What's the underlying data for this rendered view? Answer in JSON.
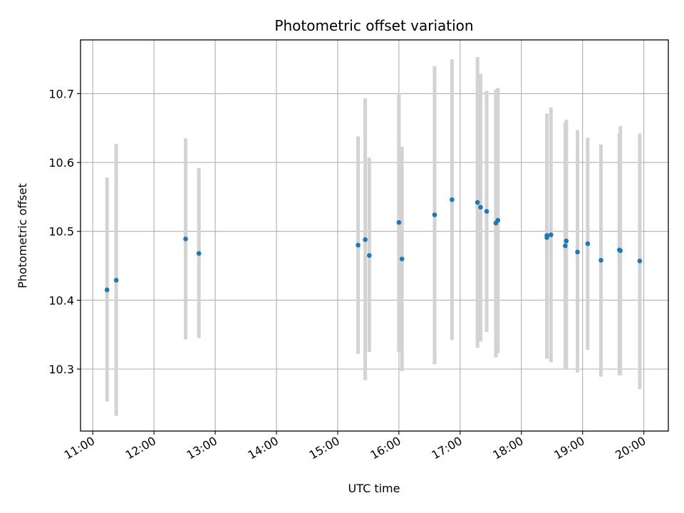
{
  "chart_data": {
    "type": "scatter",
    "title": "Photometric offset variation",
    "xlabel": "UTC time",
    "ylabel": "Photometric offset",
    "x_tick_labels": [
      "11:00",
      "12:00",
      "13:00",
      "14:00",
      "15:00",
      "16:00",
      "17:00",
      "18:00",
      "19:00",
      "20:00"
    ],
    "y_tick_labels": [
      "10.3",
      "10.4",
      "10.5",
      "10.6",
      "10.7"
    ],
    "xlim": [
      "10:48",
      "20:24"
    ],
    "ylim": [
      10.21,
      10.778
    ],
    "grid": true,
    "colors": {
      "marker": "#1f77b4",
      "errorbar": "#d3d3d3",
      "grid": "#b0b0b0"
    },
    "series": [
      {
        "points": [
          {
            "x": "11:14",
            "y": 10.415,
            "ylow": 10.253,
            "yhigh": 10.578
          },
          {
            "x": "11:23",
            "y": 10.429,
            "ylow": 10.232,
            "yhigh": 10.627
          },
          {
            "x": "12:31",
            "y": 10.489,
            "ylow": 10.343,
            "yhigh": 10.635
          },
          {
            "x": "12:44",
            "y": 10.468,
            "ylow": 10.345,
            "yhigh": 10.592
          },
          {
            "x": "15:20",
            "y": 10.48,
            "ylow": 10.322,
            "yhigh": 10.638
          },
          {
            "x": "15:27",
            "y": 10.488,
            "ylow": 10.284,
            "yhigh": 10.693
          },
          {
            "x": "15:31",
            "y": 10.465,
            "ylow": 10.325,
            "yhigh": 10.607
          },
          {
            "x": "16:00",
            "y": 10.513,
            "ylow": 10.325,
            "yhigh": 10.7
          },
          {
            "x": "16:03",
            "y": 10.46,
            "ylow": 10.297,
            "yhigh": 10.623
          },
          {
            "x": "16:35",
            "y": 10.524,
            "ylow": 10.307,
            "yhigh": 10.74
          },
          {
            "x": "16:52",
            "y": 10.546,
            "ylow": 10.342,
            "yhigh": 10.75
          },
          {
            "x": "17:17",
            "y": 10.542,
            "ylow": 10.331,
            "yhigh": 10.753
          },
          {
            "x": "17:20",
            "y": 10.535,
            "ylow": 10.34,
            "yhigh": 10.729
          },
          {
            "x": "17:26",
            "y": 10.529,
            "ylow": 10.354,
            "yhigh": 10.704
          },
          {
            "x": "17:35",
            "y": 10.512,
            "ylow": 10.317,
            "yhigh": 10.706
          },
          {
            "x": "17:37",
            "y": 10.516,
            "ylow": 10.323,
            "yhigh": 10.708
          },
          {
            "x": "18:25",
            "y": 10.491,
            "ylow": 10.315,
            "yhigh": 10.671
          },
          {
            "x": "18:25",
            "y": 10.494,
            "ylow": 10.315,
            "yhigh": 10.671
          },
          {
            "x": "18:29",
            "y": 10.495,
            "ylow": 10.31,
            "yhigh": 10.68
          },
          {
            "x": "18:43",
            "y": 10.479,
            "ylow": 10.3,
            "yhigh": 10.658
          },
          {
            "x": "18:44",
            "y": 10.486,
            "ylow": 10.3,
            "yhigh": 10.662
          },
          {
            "x": "18:55",
            "y": 10.47,
            "ylow": 10.295,
            "yhigh": 10.647
          },
          {
            "x": "19:05",
            "y": 10.482,
            "ylow": 10.328,
            "yhigh": 10.636
          },
          {
            "x": "19:18",
            "y": 10.458,
            "ylow": 10.289,
            "yhigh": 10.626
          },
          {
            "x": "19:36",
            "y": 10.473,
            "ylow": 10.291,
            "yhigh": 10.642
          },
          {
            "x": "19:37",
            "y": 10.472,
            "ylow": 10.291,
            "yhigh": 10.653
          },
          {
            "x": "19:56",
            "y": 10.457,
            "ylow": 10.271,
            "yhigh": 10.642
          }
        ]
      }
    ]
  }
}
